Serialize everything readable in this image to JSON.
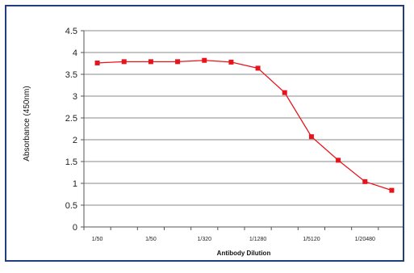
{
  "chart_data": {
    "type": "line",
    "title": "",
    "xlabel": "Antibody Dilution",
    "ylabel": "Absorbance (450nm)",
    "ylim": [
      0,
      4.5
    ],
    "yticks": [
      "0",
      "0.5",
      "1",
      "1.5",
      "2",
      "2.5",
      "3",
      "3.5",
      "4",
      "4.5"
    ],
    "x_tick_labels": [
      {
        "index": 0,
        "label": "1/50"
      },
      {
        "index": 2,
        "label": "1/50"
      },
      {
        "index": 4,
        "label": "1/320"
      },
      {
        "index": 6,
        "label": "1/1280"
      },
      {
        "index": 8,
        "label": "1/5120"
      },
      {
        "index": 10,
        "label": "1/20480"
      }
    ],
    "grid": "horizontal",
    "legend": "none",
    "series": [
      {
        "color": "#e8141c",
        "values": [
          3.76,
          3.79,
          3.79,
          3.79,
          3.82,
          3.78,
          3.64,
          3.08,
          2.07,
          1.53,
          1.04,
          0.84
        ]
      }
    ]
  }
}
